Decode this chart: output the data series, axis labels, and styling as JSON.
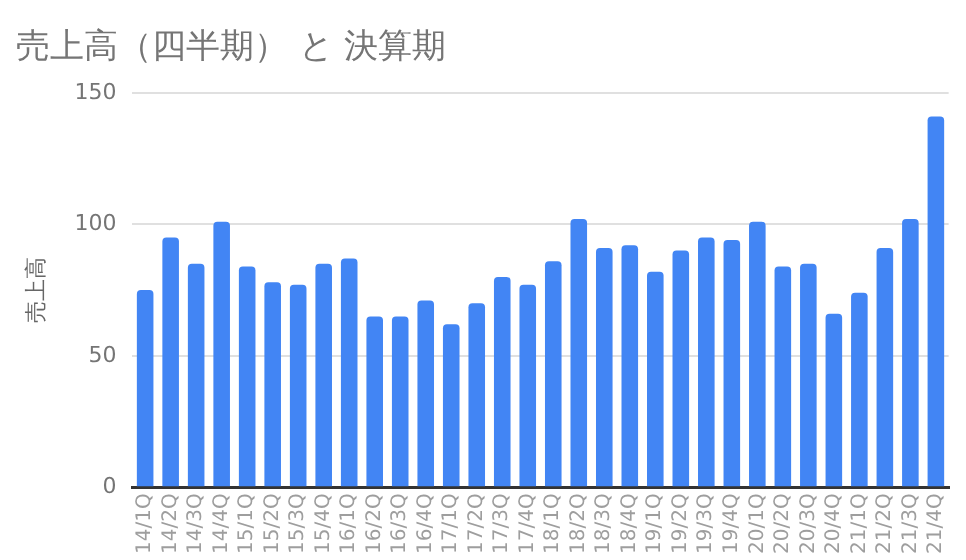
{
  "chart_data": {
    "type": "bar",
    "title": "売上高（四半期） と 決算期",
    "ylabel": "売上高",
    "categories": [
      "14/1Q",
      "14/2Q",
      "14/3Q",
      "14/4Q",
      "15/1Q",
      "15/2Q",
      "15/3Q",
      "15/4Q",
      "16/1Q",
      "16/2Q",
      "16/3Q",
      "16/4Q",
      "17/1Q",
      "17/2Q",
      "17/3Q",
      "17/4Q",
      "18/1Q",
      "18/2Q",
      "18/3Q",
      "18/4Q",
      "19/1Q",
      "19/2Q",
      "19/3Q",
      "19/4Q",
      "20/1Q",
      "20/2Q",
      "20/3Q",
      "20/4Q",
      "21/1Q",
      "21/2Q",
      "21/3Q",
      "21/4Q"
    ],
    "values": [
      75,
      95,
      85,
      101,
      84,
      78,
      77,
      85,
      87,
      65,
      65,
      71,
      62,
      70,
      80,
      77,
      86,
      102,
      91,
      92,
      82,
      90,
      95,
      94,
      101,
      84,
      85,
      66,
      74,
      91,
      102,
      141
    ],
    "color": "#4285f4",
    "ylim": [
      0,
      150
    ],
    "yticks": [
      0,
      50,
      100,
      150
    ],
    "grid": "y",
    "legend": false
  }
}
